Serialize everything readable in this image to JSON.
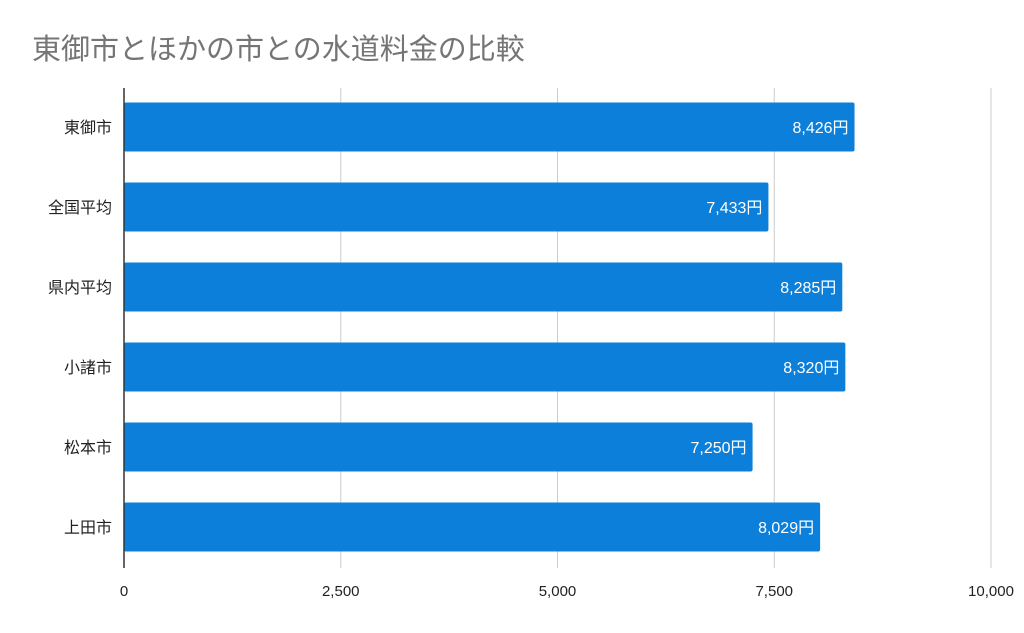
{
  "chart_data": {
    "type": "bar",
    "orientation": "horizontal",
    "title": "東御市とほかの市との水道料金の比較",
    "categories": [
      "東御市",
      "全国平均",
      "県内平均",
      "小諸市",
      "松本市",
      "上田市"
    ],
    "values": [
      8426,
      7433,
      8285,
      8320,
      7250,
      8029
    ],
    "data_labels": [
      "8,426円",
      "7,433円",
      "8,285円",
      "8,320円",
      "7,250円",
      "8,029円"
    ],
    "xlim": [
      0,
      10000
    ],
    "xticks": [
      0,
      2500,
      5000,
      7500,
      10000
    ],
    "xtick_labels": [
      "0",
      "2,500",
      "5,000",
      "7,500",
      "10,000"
    ],
    "xlabel": "",
    "ylabel": "",
    "grid": true,
    "legend": "none",
    "bar_color": "#0b7fd9",
    "title_color": "#757575"
  }
}
